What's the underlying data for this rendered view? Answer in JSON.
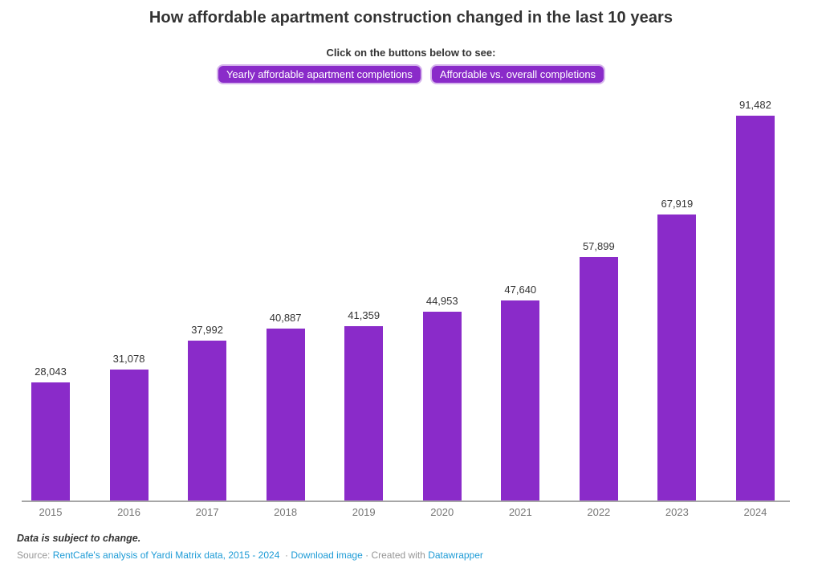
{
  "header": {
    "title": "How affordable apartment construction changed in the last 10 years",
    "subtitle": "Click on the buttons below to see:",
    "buttons": [
      {
        "label": "Yearly affordable apartment completions"
      },
      {
        "label": "Affordable vs. overall completions"
      }
    ]
  },
  "chart_data": {
    "type": "bar",
    "categories": [
      "2015",
      "2016",
      "2017",
      "2018",
      "2019",
      "2020",
      "2021",
      "2022",
      "2023",
      "2024"
    ],
    "values": [
      28043,
      31078,
      37992,
      40887,
      41359,
      44953,
      47640,
      57899,
      67919,
      91482
    ],
    "value_labels": [
      "28,043",
      "31,078",
      "37,992",
      "40,887",
      "41,359",
      "44,953",
      "47,640",
      "57,899",
      "67,919",
      "91,482"
    ],
    "title": "How affordable apartment construction changed in the last 10 years",
    "xlabel": "",
    "ylabel": "",
    "ylim": [
      0,
      95000
    ],
    "grid": false,
    "legend": false,
    "bar_color": "#8a2bc9",
    "axis_line_color": "#a6a6a6"
  },
  "footer": {
    "note": "Data is subject to change.",
    "source_prefix": "Source:",
    "source_link": "RentCafe's analysis of Yardi Matrix data, 2015 - 2024",
    "separator": "·",
    "download_label": "Download image",
    "created_with": "Created with",
    "credit_label": "Datawrapper"
  },
  "colors": {
    "accent_purple": "#8a2bc9",
    "link_blue": "#1d9bd6",
    "text_dark": "#333333",
    "text_gray": "#767676"
  }
}
